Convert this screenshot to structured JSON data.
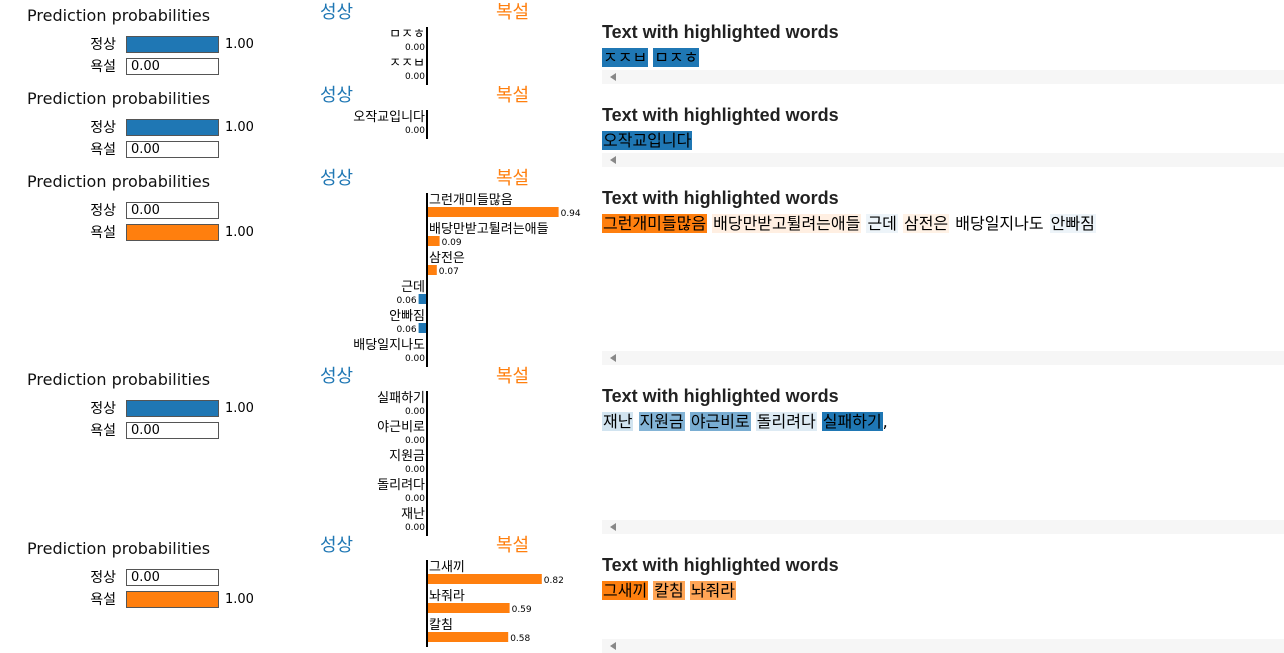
{
  "colors": {
    "normal": "#1f77b4",
    "abuse": "#ff7f0e"
  },
  "labels": {
    "pp_title": "Prediction probabilities",
    "text_title": "Text with highlighted words",
    "class_normal": "정상",
    "class_abuse": "욕설",
    "class_left": "성상",
    "class_right": "복설"
  },
  "chart_data": [
    {
      "type": "bar",
      "probabilities": [
        {
          "class": "정상",
          "value": 1.0,
          "label": "1.00"
        },
        {
          "class": "욕설",
          "value": 0.0,
          "label": "0.00"
        }
      ],
      "features": [
        {
          "word": "ㅁㅈㅎ",
          "weight": 0.0,
          "label": "0.00"
        },
        {
          "word": "ㅈㅈㅂ",
          "weight": 0.0,
          "label": "0.00"
        }
      ],
      "text_segments": [
        {
          "word": "ㅈㅈㅂ",
          "hl": "normal",
          "alpha": 1.0
        },
        {
          "word": "ㅁㅈㅎ",
          "hl": "normal",
          "alpha": 1.0
        }
      ],
      "text_suffix": ""
    },
    {
      "type": "bar",
      "probabilities": [
        {
          "class": "정상",
          "value": 1.0,
          "label": "1.00"
        },
        {
          "class": "욕설",
          "value": 0.0,
          "label": "0.00"
        }
      ],
      "features": [
        {
          "word": "오작교입니다",
          "weight": 0.0,
          "label": "0.00"
        }
      ],
      "text_segments": [
        {
          "word": "오작교입니다",
          "hl": "normal",
          "alpha": 1.0
        }
      ],
      "text_suffix": ""
    },
    {
      "type": "bar",
      "probabilities": [
        {
          "class": "정상",
          "value": 0.0,
          "label": "0.00"
        },
        {
          "class": "욕설",
          "value": 1.0,
          "label": "1.00"
        }
      ],
      "features": [
        {
          "word": "그런개미들많음",
          "weight": 0.94,
          "label": "0.94"
        },
        {
          "word": "배당만받고튈려는애들",
          "weight": 0.09,
          "label": "0.09"
        },
        {
          "word": "삼전은",
          "weight": 0.07,
          "label": "0.07"
        },
        {
          "word": "근데",
          "weight": -0.06,
          "label": "0.06"
        },
        {
          "word": "안빠짐",
          "weight": -0.06,
          "label": "0.06"
        },
        {
          "word": "배당일지나도",
          "weight": 0.0,
          "label": "0.00"
        }
      ],
      "text_segments": [
        {
          "word": "그런개미들많음",
          "hl": "abuse",
          "alpha": 1.0
        },
        {
          "word": "배당만받고튈려는애들",
          "hl": "abuse",
          "alpha": 0.12
        },
        {
          "word": "근데",
          "hl": "normal",
          "alpha": 0.08
        },
        {
          "word": "삼전은",
          "hl": "abuse",
          "alpha": 0.1
        },
        {
          "word": "배당일지나도",
          "hl": "none",
          "alpha": 0
        },
        {
          "word": "안빠짐",
          "hl": "normal",
          "alpha": 0.08
        }
      ],
      "text_suffix": ""
    },
    {
      "type": "bar",
      "probabilities": [
        {
          "class": "정상",
          "value": 1.0,
          "label": "1.00"
        },
        {
          "class": "욕설",
          "value": 0.0,
          "label": "0.00"
        }
      ],
      "features": [
        {
          "word": "실패하기",
          "weight": 0.0,
          "label": "0.00"
        },
        {
          "word": "야근비로",
          "weight": 0.0,
          "label": "0.00"
        },
        {
          "word": "지원금",
          "weight": 0.0,
          "label": "0.00"
        },
        {
          "word": "돌리려다",
          "weight": 0.0,
          "label": "0.00"
        },
        {
          "word": "재난",
          "weight": 0.0,
          "label": "0.00"
        }
      ],
      "text_segments": [
        {
          "word": "재난",
          "hl": "normal",
          "alpha": 0.2
        },
        {
          "word": "지원금",
          "hl": "normal",
          "alpha": 0.55
        },
        {
          "word": "야근비로",
          "hl": "normal",
          "alpha": 0.6
        },
        {
          "word": "돌리려다",
          "hl": "normal",
          "alpha": 0.15
        },
        {
          "word": "실패하기",
          "hl": "normal",
          "alpha": 1.0
        }
      ],
      "text_suffix": ","
    },
    {
      "type": "bar",
      "probabilities": [
        {
          "class": "정상",
          "value": 0.0,
          "label": "0.00"
        },
        {
          "class": "욕설",
          "value": 1.0,
          "label": "1.00"
        }
      ],
      "features": [
        {
          "word": "그새끼",
          "weight": 0.82,
          "label": "0.82"
        },
        {
          "word": "놔줘라",
          "weight": 0.59,
          "label": "0.59"
        },
        {
          "word": "칼침",
          "weight": 0.58,
          "label": "0.58"
        }
      ],
      "text_segments": [
        {
          "word": "그새끼",
          "hl": "abuse",
          "alpha": 1.0
        },
        {
          "word": "칼침",
          "hl": "abuse",
          "alpha": 0.7
        },
        {
          "word": "놔줘라",
          "hl": "abuse",
          "alpha": 0.7
        }
      ],
      "text_suffix": ""
    }
  ]
}
